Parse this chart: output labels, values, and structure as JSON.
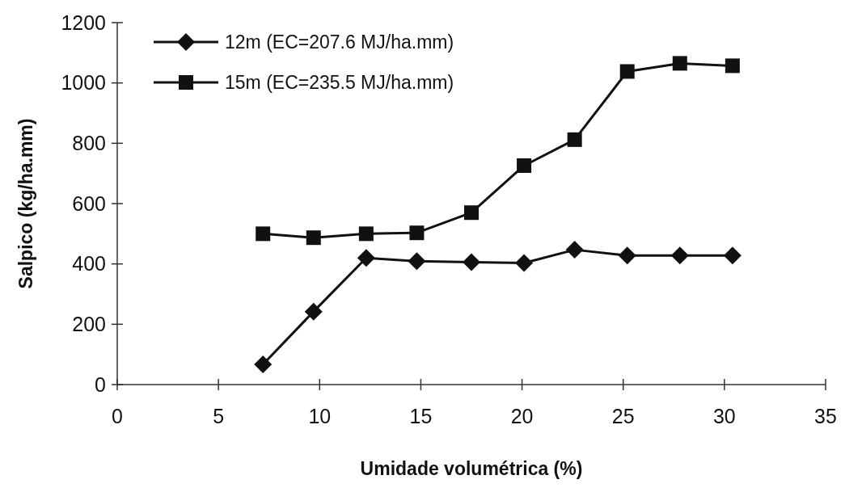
{
  "chart_data": {
    "type": "line",
    "xlabel": "Umidade volumétrica (%)",
    "ylabel": "Salpico (kg/ha.mm)",
    "xlim": [
      0,
      35
    ],
    "xticks": [
      0,
      5,
      10,
      15,
      20,
      25,
      30,
      35
    ],
    "ylim": [
      0,
      1200
    ],
    "yticks": [
      0,
      200,
      400,
      600,
      800,
      1000,
      1200
    ],
    "grid": false,
    "legend": "top left",
    "line_style": "solid",
    "series": [
      {
        "name": "12m (EC=207.6 MJ/ha.mm)",
        "color": "#111111",
        "marker": "diamond",
        "x": [
          7.2,
          9.7,
          12.3,
          14.8,
          17.5,
          20.1,
          22.6,
          25.2,
          27.8,
          30.4
        ],
        "values": [
          67,
          242,
          420,
          409,
          406,
          403,
          447,
          428,
          428,
          428
        ]
      },
      {
        "name": "15m (EC=235.5 MJ/ha.mm)",
        "color": "#111111",
        "marker": "square",
        "x": [
          7.2,
          9.7,
          12.3,
          14.8,
          17.5,
          20.1,
          22.6,
          25.2,
          27.8,
          30.4
        ],
        "values": [
          500,
          487,
          500,
          503,
          570,
          726,
          812,
          1038,
          1065,
          1057
        ]
      }
    ]
  }
}
